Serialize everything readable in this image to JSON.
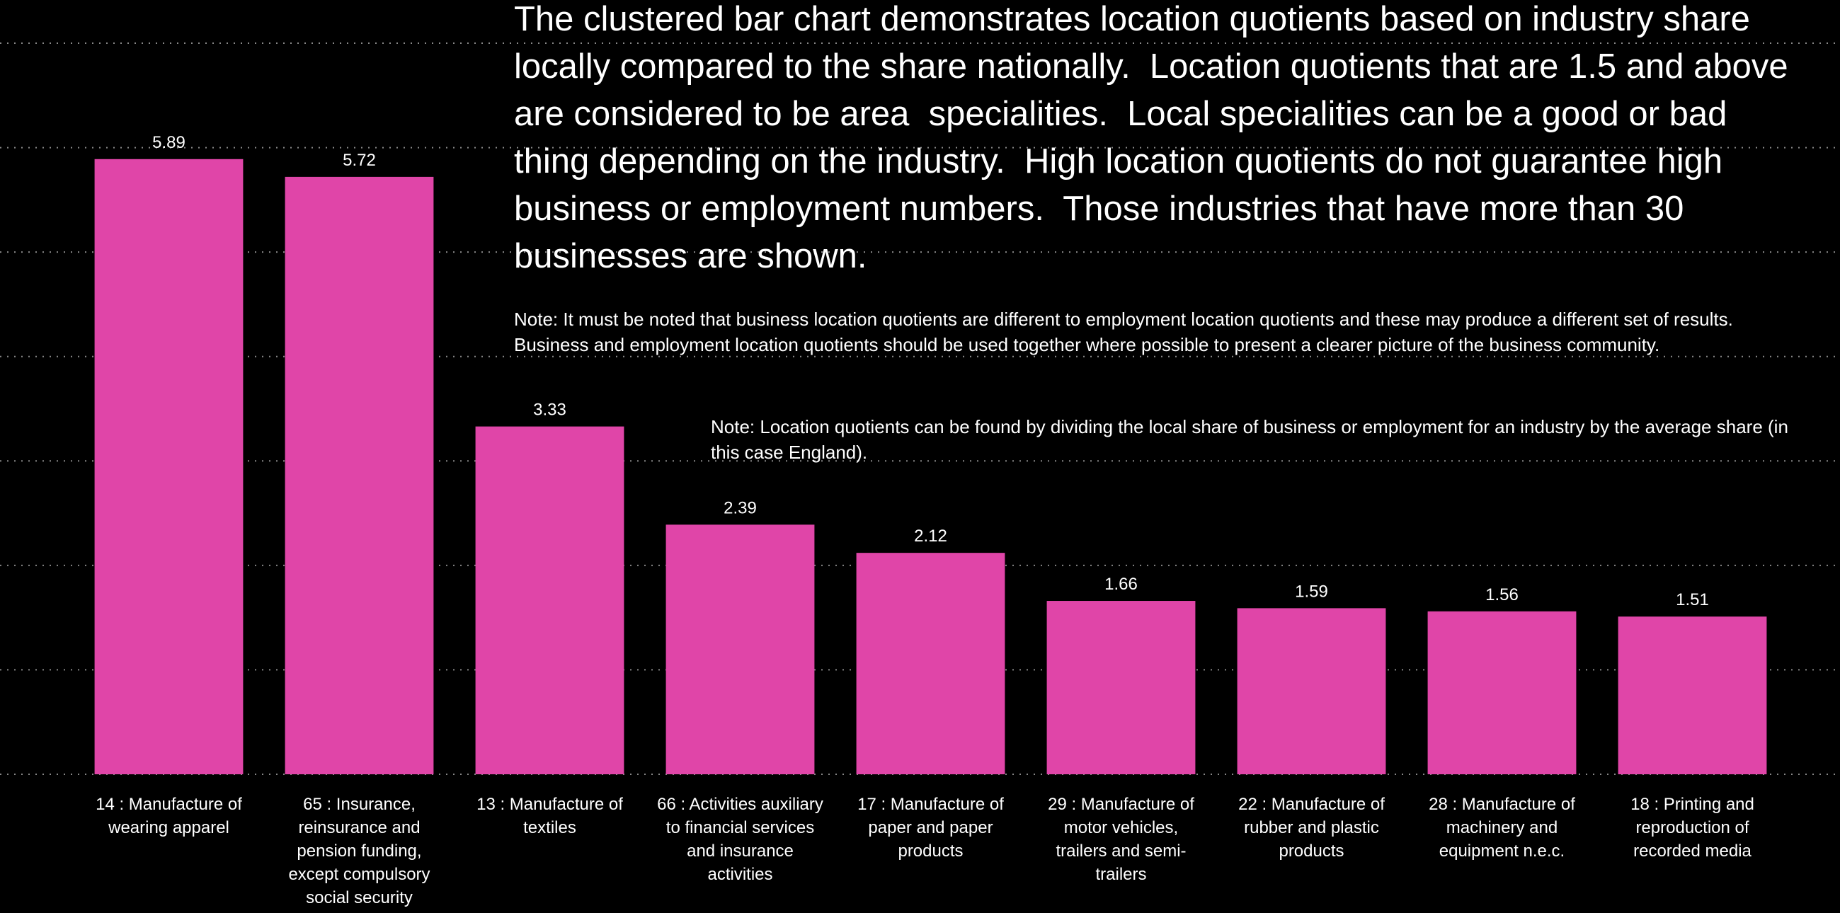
{
  "chart_data": {
    "type": "bar",
    "annotations": [
      "The clustered bar chart demonstrates location quotients based on industry share locally compared to the share nationally.  Location quotients that are 1.5 and above are considered to be area  specialities.  Local specialities can be a good or bad thing depending on the industry.  High location quotients do not guarantee high business or employment numbers.  Those industries that have more than 30 businesses are shown.",
      "Note: It must be noted that business location quotients are different to employment location quotients and these may produce a different set of results.  Business and employment location quotients should be used together where possible to present a clearer picture of the business community.",
      "Note: Location quotients can be found by dividing the local share of business or employment for an industry by the average share (in this case England)."
    ],
    "categories": [
      "14 : Manufacture of wearing apparel",
      "65 : Insurance, reinsurance and pension funding, except compulsory social security",
      "13 : Manufacture of textiles",
      "66 : Activities auxiliary to financial services and insurance activities",
      "17 : Manufacture of paper and paper products",
      "29 : Manufacture of motor vehicles, trailers and semi-trailers",
      "22 : Manufacture of rubber and plastic products",
      "28 : Manufacture of machinery and equipment n.e.c.",
      "18 : Printing and reproduction of recorded media"
    ],
    "values": [
      5.89,
      5.72,
      3.33,
      2.39,
      2.12,
      1.66,
      1.59,
      1.56,
      1.51
    ],
    "color": "#e045a8",
    "ylim": [
      0,
      7
    ],
    "yticks": [
      0,
      1,
      2,
      3,
      4,
      5,
      6,
      7
    ],
    "grid": true
  }
}
